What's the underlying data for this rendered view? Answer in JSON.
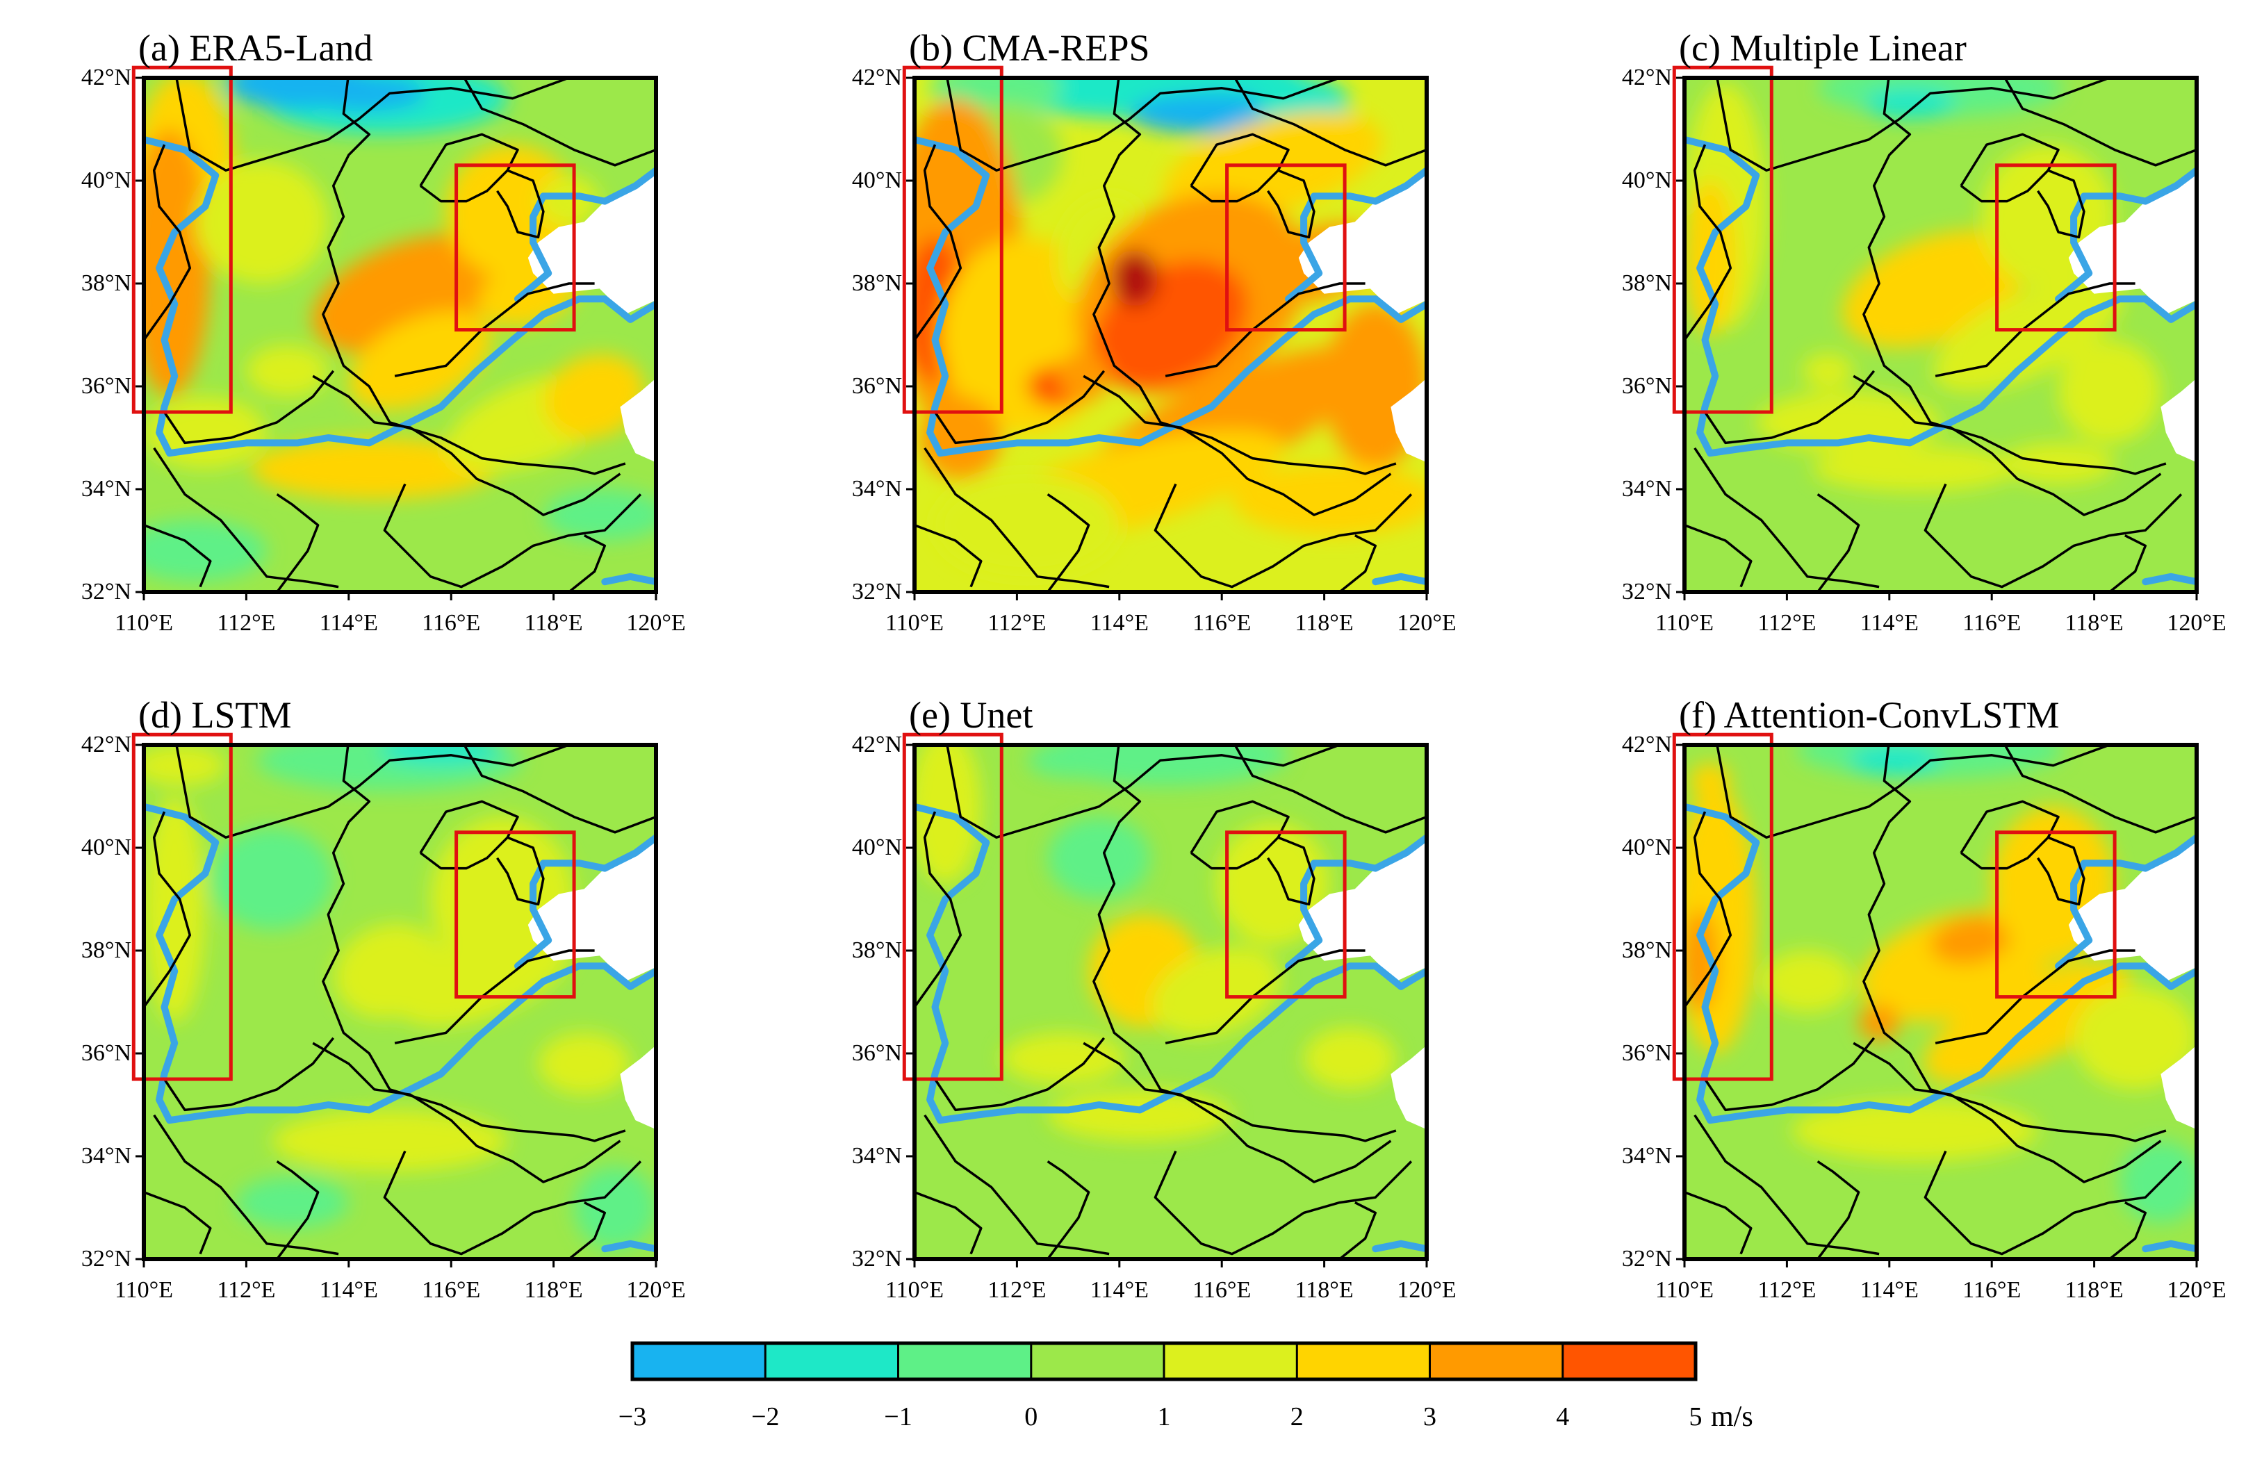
{
  "panels": [
    {
      "id": "a",
      "title": "(a) ERA5-Land",
      "pattern": "era5"
    },
    {
      "id": "b",
      "title": "(b) CMA-REPS",
      "pattern": "cma"
    },
    {
      "id": "c",
      "title": "(c) Multiple Linear",
      "pattern": "mlr"
    },
    {
      "id": "d",
      "title": "(d) LSTM",
      "pattern": "lstm"
    },
    {
      "id": "e",
      "title": "(e) Unet",
      "pattern": "unet"
    },
    {
      "id": "f",
      "title": "(f) Attention-ConvLSTM",
      "pattern": "att"
    }
  ],
  "axes": {
    "lat_labels": [
      "42°N",
      "40°N",
      "38°N",
      "36°N",
      "34°N",
      "32°N"
    ],
    "lat_values": [
      42,
      40,
      38,
      36,
      34,
      32
    ],
    "lon_labels": [
      "110°E",
      "112°E",
      "114°E",
      "116°E",
      "118°E",
      "120°E"
    ],
    "lon_values": [
      110,
      112,
      114,
      116,
      118,
      120
    ],
    "lat_range": [
      32,
      42
    ],
    "lon_range": [
      110,
      120
    ]
  },
  "regions": [
    {
      "name": "west-box",
      "lon": [
        109.8,
        111.7
      ],
      "lat": [
        35.5,
        42.2
      ]
    },
    {
      "name": "beijing-box",
      "lon": [
        116.1,
        118.4
      ],
      "lat": [
        37.1,
        40.3
      ]
    }
  ],
  "colorbar": {
    "labels": [
      "−3",
      "−2",
      "−1",
      "0",
      "1",
      "2",
      "3",
      "4",
      "5"
    ],
    "values": [
      -3,
      -2,
      -1,
      0,
      1,
      2,
      3,
      4,
      5
    ],
    "unit": "m/s",
    "colors": [
      "#18b3f0",
      "#1ee8c7",
      "#5ef087",
      "#9ce84a",
      "#dcf01e",
      "#ffd400",
      "#ff9a00",
      "#ff5500"
    ]
  },
  "colors": {
    "boundary": "#000000",
    "river": "#3aa5e6",
    "box": "#e01010",
    "sea": "#ffffff",
    "extreme_high": "#b01010"
  }
}
